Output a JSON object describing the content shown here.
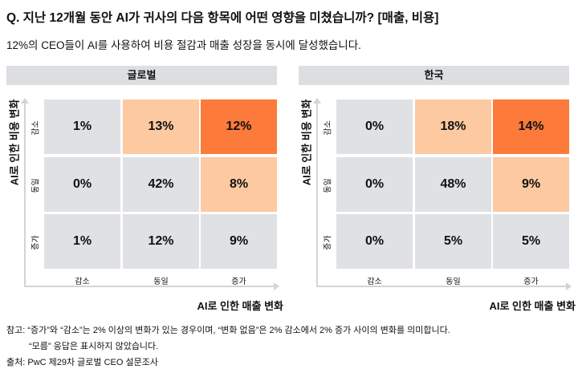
{
  "title": "Q. 지난 12개월 동안 AI가 귀사의 다음 항목에 어떤 영향을 미쳤습니까? [매출, 비용]",
  "subtitle": "12%의 CEO들이 AI를 사용하여 비용 절감과 매출 성장을 동시에 달성했습니다.",
  "colors": {
    "none": "#dfe1e4",
    "light": "#fdc9a0",
    "dark": "#fd7b3a"
  },
  "chart_data": [
    {
      "type": "heatmap",
      "title": "글로벌",
      "xlabel": "AI로 인한 매출 변화",
      "ylabel": "AI로 인한 비용 변화",
      "x_categories": [
        "감소",
        "동일",
        "증가"
      ],
      "y_categories": [
        "감소",
        "동일",
        "증가"
      ],
      "values": [
        [
          "1%",
          "13%",
          "12%"
        ],
        [
          "0%",
          "42%",
          "8%"
        ],
        [
          "1%",
          "12%",
          "9%"
        ]
      ],
      "highlight": [
        [
          "none",
          "light",
          "dark"
        ],
        [
          "none",
          "none",
          "light"
        ],
        [
          "none",
          "none",
          "none"
        ]
      ]
    },
    {
      "type": "heatmap",
      "title": "한국",
      "xlabel": "AI로 인한 매출 변화",
      "ylabel": "AI로 인한 비용 변화",
      "x_categories": [
        "감소",
        "동일",
        "증가"
      ],
      "y_categories": [
        "감소",
        "동일",
        "증가"
      ],
      "values": [
        [
          "0%",
          "18%",
          "14%"
        ],
        [
          "0%",
          "48%",
          "9%"
        ],
        [
          "0%",
          "5%",
          "5%"
        ]
      ],
      "highlight": [
        [
          "none",
          "light",
          "dark"
        ],
        [
          "none",
          "none",
          "light"
        ],
        [
          "none",
          "none",
          "none"
        ]
      ]
    }
  ],
  "notes": {
    "line1": "참고: “증가”와 “감소”는 2% 이상의 변화가 있는 경우이며, “변화 없음”은 2% 감소에서 2% 증가 사이의 변화를 의미합니다.",
    "line2": "“모름” 응답은 표시하지 않았습니다.",
    "source": "출처: PwC 제29차 글로벌 CEO 설문조사"
  }
}
